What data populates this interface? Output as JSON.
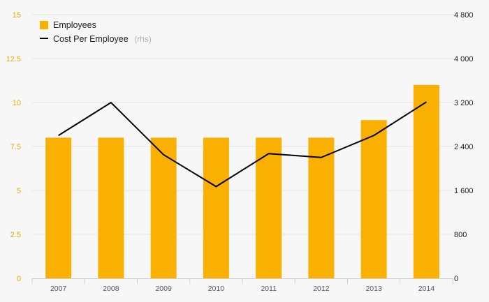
{
  "chart_data": {
    "type": "bar",
    "categories": [
      "2007",
      "2008",
      "2009",
      "2010",
      "2011",
      "2012",
      "2013",
      "2014"
    ],
    "series": [
      {
        "name": "Employees",
        "type": "bar",
        "axis": "left",
        "color": "#f9b000",
        "values": [
          8,
          8,
          8,
          8,
          8,
          8,
          9,
          11
        ]
      },
      {
        "name": "Cost Per Employee",
        "axis_note": "(rhs)",
        "type": "line",
        "axis": "right",
        "color": "#000000",
        "values": [
          2600,
          3200,
          2250,
          1670,
          2270,
          2200,
          2600,
          3210
        ]
      }
    ],
    "y_left": {
      "min": 0,
      "max": 15,
      "ticks": [
        "0",
        "2.5",
        "5",
        "7.5",
        "10",
        "12.5",
        "15"
      ],
      "color": "#e8a900"
    },
    "y_right": {
      "min": 0,
      "max": 4800,
      "ticks": [
        "0",
        "800",
        "1 600",
        "2 400",
        "3 200",
        "4 000",
        "4 800"
      ],
      "color": "#222222"
    },
    "legend_position": "top-left",
    "grid": true
  }
}
